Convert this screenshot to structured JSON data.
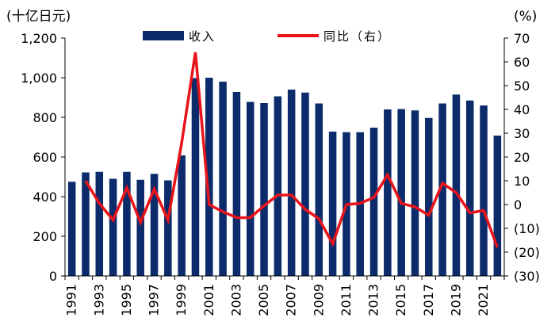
{
  "chart_data": {
    "type": "bar+line",
    "left_axis_unit": "(十亿日元)",
    "right_axis_unit": "(%)",
    "left_ylim": [
      0,
      1200
    ],
    "right_ylim": [
      -30,
      70
    ],
    "left_ticks": [
      0,
      200,
      400,
      600,
      800,
      1000,
      1200
    ],
    "left_tick_labels": [
      "0",
      "200",
      "400",
      "600",
      "800",
      "1,000",
      "1,200"
    ],
    "right_ticks": [
      -30,
      -20,
      -10,
      0,
      10,
      20,
      30,
      40,
      50,
      60,
      70
    ],
    "right_tick_labels": [
      "(30)",
      "(20)",
      "(10)",
      "0",
      "10",
      "20",
      "30",
      "40",
      "50",
      "60",
      "70"
    ],
    "categories": [
      "1991",
      "1992",
      "1993",
      "1994",
      "1995",
      "1996",
      "1997",
      "1998",
      "1999",
      "2000",
      "2001",
      "2002",
      "2003",
      "2004",
      "2005",
      "2006",
      "2007",
      "2008",
      "2009",
      "2010",
      "2011",
      "2012",
      "2013",
      "2014",
      "2015",
      "2016",
      "2017",
      "2018",
      "2019",
      "2020",
      "2021",
      "2022"
    ],
    "x_tick_labels": [
      "1991",
      "1993",
      "1995",
      "1997",
      "1999",
      "2001",
      "2003",
      "2005",
      "2007",
      "2009",
      "2011",
      "2013",
      "2015",
      "2017",
      "2019",
      "2021"
    ],
    "series": [
      {
        "name": "收入",
        "type": "bar",
        "axis": "left",
        "color": "#0b2b6b",
        "values": [
          475,
          522,
          525,
          490,
          525,
          485,
          515,
          482,
          608,
          998,
          1000,
          980,
          928,
          878,
          872,
          906,
          940,
          925,
          870,
          728,
          725,
          725,
          748,
          840,
          842,
          835,
          797,
          870,
          915,
          885,
          860,
          708
        ]
      },
      {
        "name": "同比（右）",
        "type": "line",
        "axis": "right",
        "color": "#e8141b",
        "values": [
          null,
          10,
          0.5,
          -6.5,
          7,
          -7.5,
          6.5,
          -6.5,
          26,
          64,
          0,
          -3,
          -5.5,
          -5.5,
          -0.5,
          4,
          4,
          -2,
          -6,
          -16.5,
          0,
          0.5,
          3,
          12.5,
          0.5,
          -1,
          -4.5,
          9,
          5,
          -3.5,
          -2.5,
          -18
        ]
      }
    ]
  }
}
